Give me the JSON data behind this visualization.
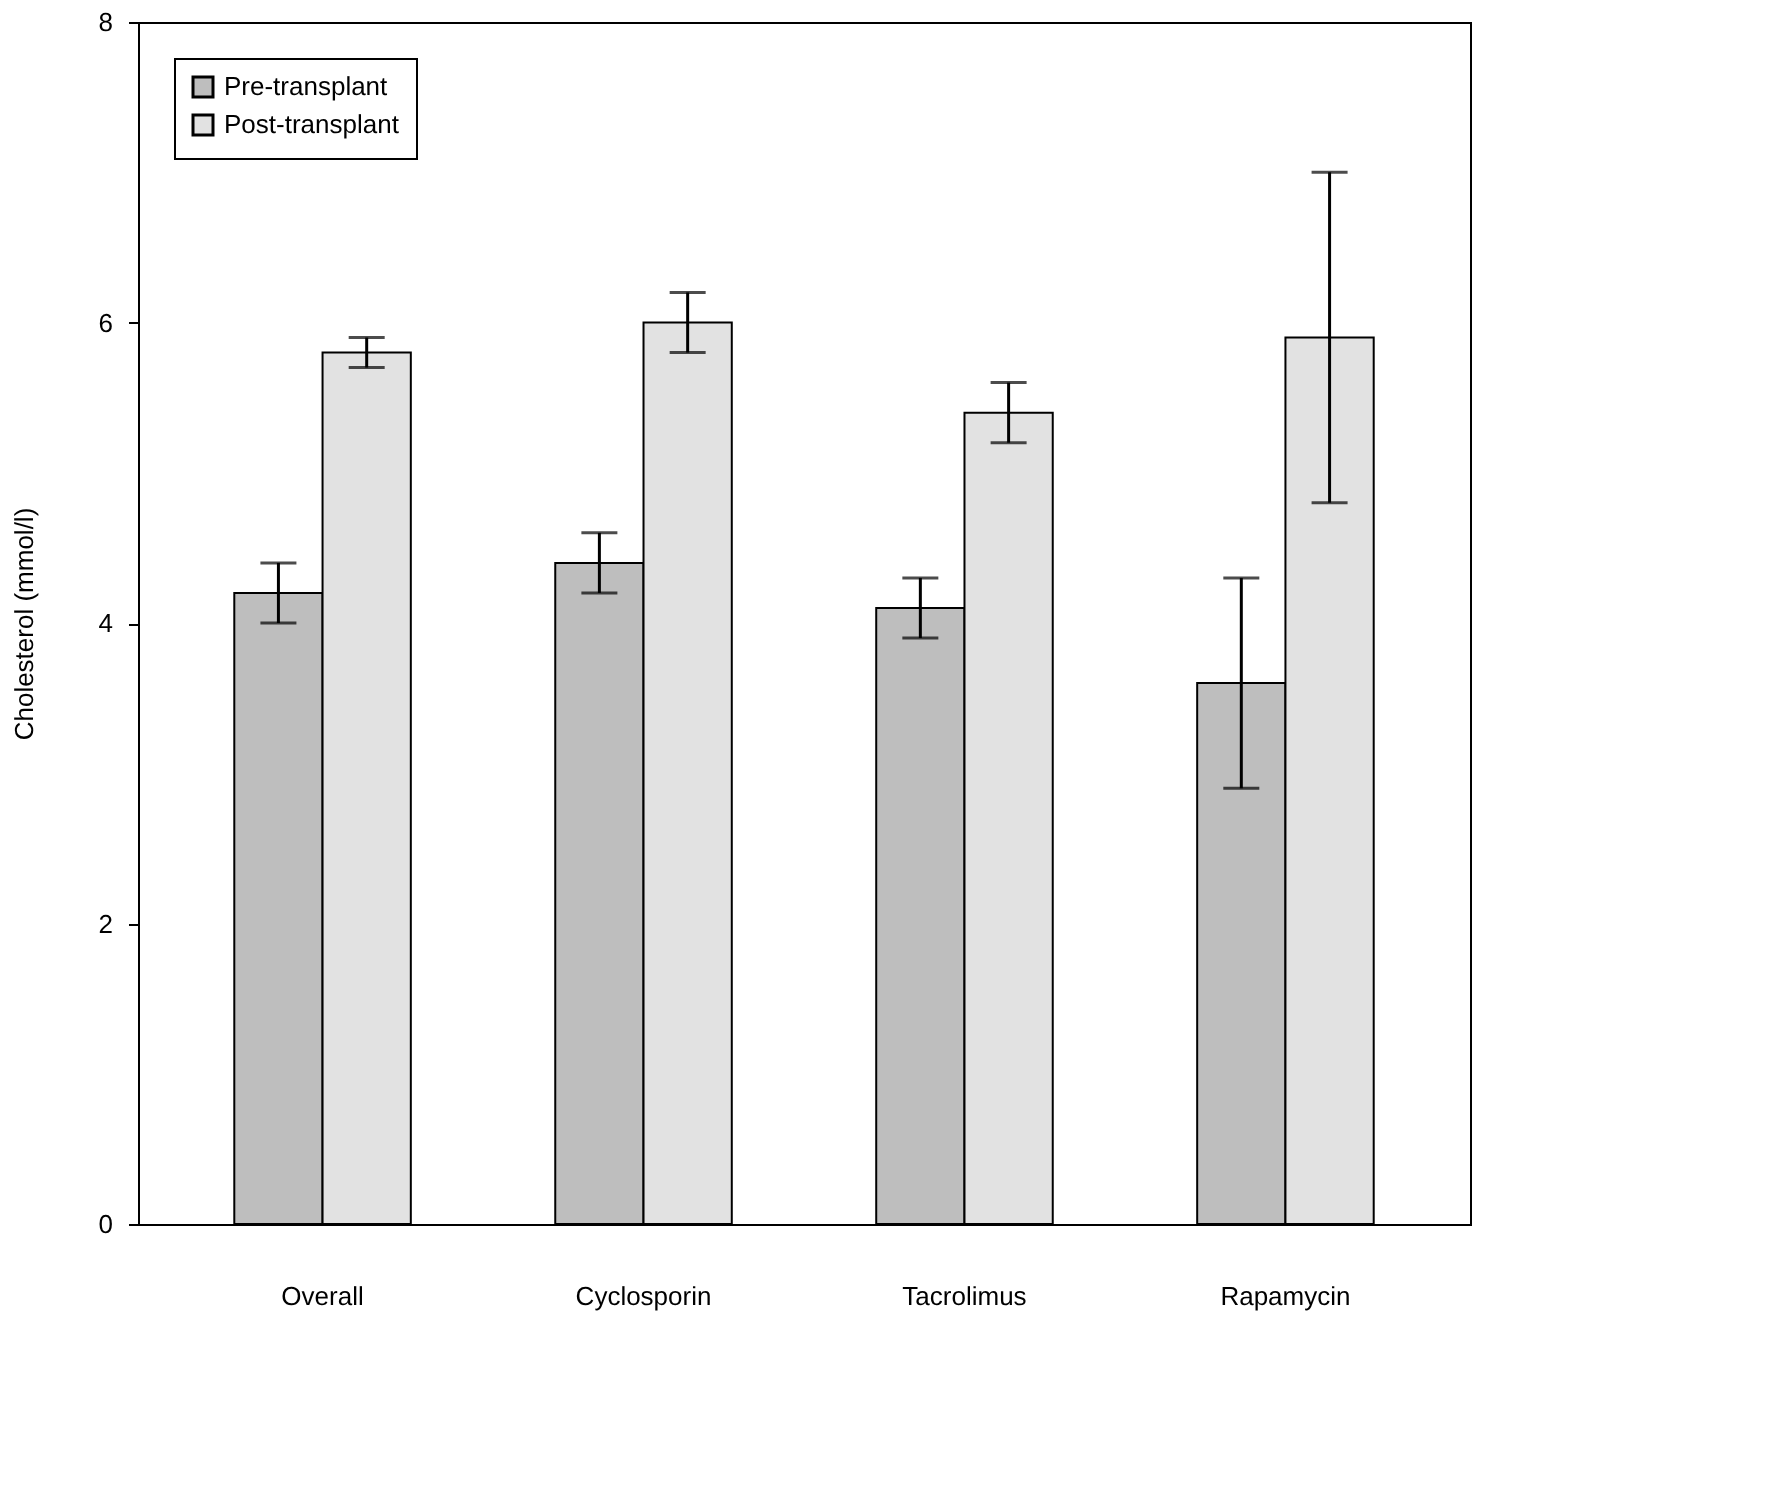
{
  "chart_data": {
    "type": "bar",
    "ylabel": "Cholesterol (mmol/l)",
    "categories": [
      "Overall",
      "Cyclosporin",
      "Tacrolimus",
      "Rapamycin"
    ],
    "series": [
      {
        "name": "Pre-transplant",
        "color": "#bebebe",
        "values": [
          4.2,
          4.4,
          4.1,
          3.6
        ],
        "errors": [
          [
            4.0,
            4.4
          ],
          [
            4.2,
            4.6
          ],
          [
            3.9,
            4.3
          ],
          [
            2.9,
            4.3
          ]
        ]
      },
      {
        "name": "Post-transplant",
        "color": "#e2e2e2",
        "values": [
          5.8,
          6.0,
          5.4,
          5.9
        ],
        "errors": [
          [
            5.7,
            5.9
          ],
          [
            5.8,
            6.2
          ],
          [
            5.2,
            5.6
          ],
          [
            4.8,
            7.0
          ]
        ]
      }
    ],
    "ylim": [
      0,
      8
    ],
    "yticks": [
      0,
      2,
      4,
      6,
      8
    ],
    "grid": false,
    "legend": "top left"
  }
}
